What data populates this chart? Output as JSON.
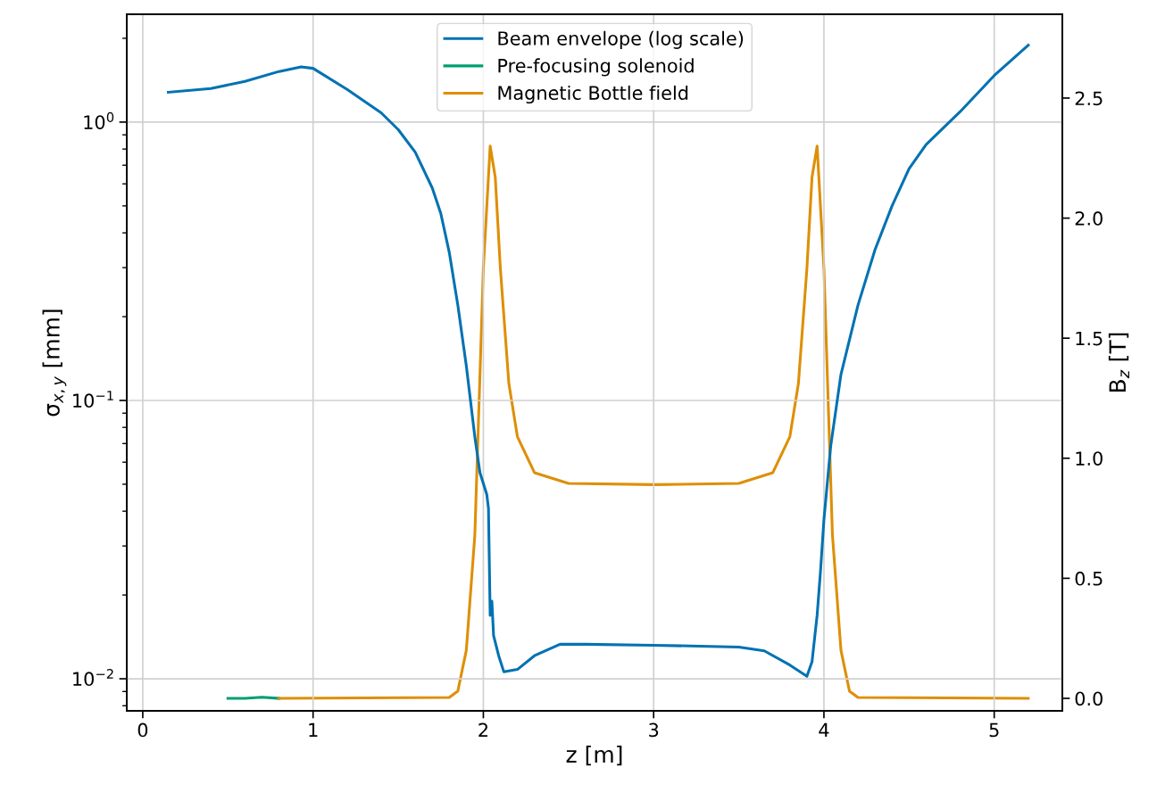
{
  "chart_data": {
    "type": "line",
    "xlabel": "z [m]",
    "ylabel": "σ$_{x,y}$ [mm]",
    "y2label": "B$_{z}$ [T]",
    "xlim": [
      -0.094,
      5.4
    ],
    "xticks": [
      0,
      1,
      2,
      3,
      4,
      5
    ],
    "ylim": [
      0.00767,
      2.44
    ],
    "yticks": [
      {
        "value": 0.01,
        "label": "10$^{−2}$"
      },
      {
        "value": 0.1,
        "label": "10$^{−1}$"
      },
      {
        "value": 1,
        "label": "10$^{0}$"
      }
    ],
    "y2lim": [
      -0.052,
      2.849
    ],
    "y2ticks": [
      {
        "value": 0,
        "label": "0.0"
      },
      0.5,
      {
        "value": 1,
        "label": "1.0"
      },
      1.5,
      {
        "value": 2,
        "label": "2.0"
      },
      2.5
    ],
    "log": "y",
    "grid": true,
    "legend": "top",
    "line_style": "solid",
    "marker": "none",
    "series": [
      {
        "name": "Beam envelope (log scale)",
        "color": "#0072b2",
        "x": [
          0.15,
          0.4,
          0.6,
          0.8,
          0.93,
          1.0,
          1.2,
          1.4,
          1.5,
          1.6,
          1.7,
          1.75,
          1.8,
          1.85,
          1.9,
          1.95,
          1.98,
          2.02,
          2.03,
          2.04,
          2.05,
          2.06,
          2.09,
          2.12,
          2.2,
          2.3,
          2.45,
          2.6,
          3.0,
          3.5,
          3.65,
          3.8,
          3.87,
          3.9,
          3.93,
          3.96,
          3.98,
          4.0,
          4.04,
          4.1,
          4.2,
          4.3,
          4.4,
          4.5,
          4.6,
          4.8,
          5.0,
          5.2
        ],
        "values": [
          1.28,
          1.32,
          1.4,
          1.52,
          1.58,
          1.56,
          1.31,
          1.08,
          0.94,
          0.78,
          0.58,
          0.47,
          0.34,
          0.22,
          0.133,
          0.074,
          0.055,
          0.046,
          0.041,
          0.0169,
          0.019,
          0.0143,
          0.0121,
          0.0106,
          0.0108,
          0.0121,
          0.0133,
          0.0133,
          0.0132,
          0.013,
          0.0126,
          0.0112,
          0.0105,
          0.0102,
          0.0115,
          0.0169,
          0.0244,
          0.0373,
          0.0687,
          0.124,
          0.22,
          0.348,
          0.5,
          0.68,
          0.83,
          1.09,
          1.47,
          1.89
        ]
      },
      {
        "name": "Pre-focusing solenoid",
        "color": "#009e73",
        "axis": "y2",
        "x": [
          0.5,
          0.6,
          0.7,
          0.8
        ],
        "values": [
          0.0,
          0.0,
          0.005,
          0.0
        ]
      },
      {
        "name": "Magnetic Bottle field",
        "color": "#de8f05",
        "axis": "y2",
        "x": [
          0.8,
          1.8,
          1.85,
          1.9,
          1.95,
          2.0,
          2.04,
          2.07,
          2.1,
          2.15,
          2.2,
          2.3,
          2.5,
          3.0,
          3.5,
          3.7,
          3.8,
          3.85,
          3.9,
          3.93,
          3.96,
          4.0,
          4.05,
          4.1,
          4.15,
          4.2,
          5.2
        ],
        "values": [
          0.0,
          0.004,
          0.03,
          0.2,
          0.68,
          1.79,
          2.3,
          2.17,
          1.79,
          1.31,
          1.09,
          0.94,
          0.895,
          0.89,
          0.895,
          0.94,
          1.09,
          1.31,
          1.79,
          2.17,
          2.3,
          1.79,
          0.68,
          0.2,
          0.03,
          0.004,
          0.0
        ]
      }
    ]
  }
}
